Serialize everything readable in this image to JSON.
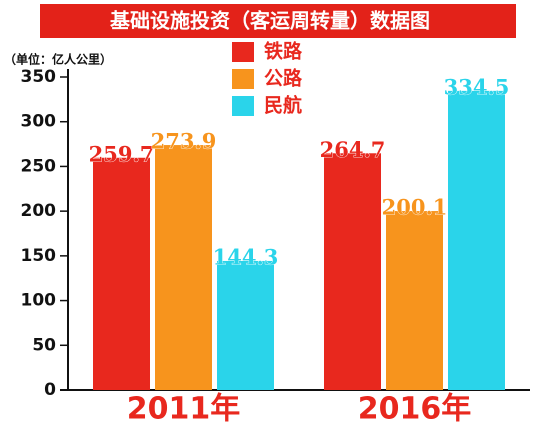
{
  "chart_data": {
    "type": "bar",
    "title": "基础设施投资（客运周转量）数据图",
    "y_label": "（单位：亿人公里）",
    "categories": [
      "2011年",
      "2016年"
    ],
    "series": [
      {
        "name": "铁路",
        "color": "#e8281e",
        "values": [
          259.7,
          264.7
        ]
      },
      {
        "name": "公路",
        "color": "#f7941d",
        "values": [
          273.9,
          200.1
        ]
      },
      {
        "name": "民航",
        "color": "#2ad4ea",
        "values": [
          144.3,
          334.5
        ]
      }
    ],
    "ylim": [
      0,
      350
    ],
    "yticks": [
      0,
      50,
      100,
      150,
      200,
      250,
      300,
      350
    ],
    "grid": false
  }
}
